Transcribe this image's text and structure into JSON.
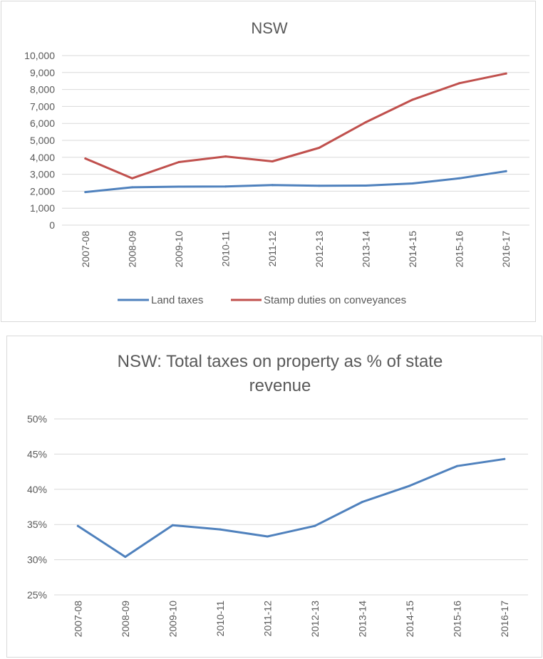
{
  "chart_data": [
    {
      "type": "line",
      "title": "NSW",
      "xlabel": "",
      "ylabel": "",
      "ylim": [
        0,
        10000
      ],
      "ytick_labels": [
        "0",
        "1,000",
        "2,000",
        "3,000",
        "4,000",
        "5,000",
        "6,000",
        "7,000",
        "8,000",
        "9,000",
        "10,000"
      ],
      "categories": [
        "2007-08",
        "2008-09",
        "2009-10",
        "2010-11",
        "2011-12",
        "2012-13",
        "2013-14",
        "2014-15",
        "2015-16",
        "2016-17"
      ],
      "grid": true,
      "legend": "bottom",
      "series": [
        {
          "name": "Land taxes",
          "color": "#4f81bd",
          "values": [
            1950,
            2230,
            2270,
            2280,
            2360,
            2320,
            2330,
            2460,
            2760,
            3180
          ]
        },
        {
          "name": "Stamp duties on conveyances",
          "color": "#c0504d",
          "values": [
            3930,
            2760,
            3720,
            4050,
            3760,
            4560,
            6070,
            7400,
            8370,
            8940
          ]
        }
      ]
    },
    {
      "type": "line",
      "title": "NSW: Total taxes on property as % of state revenue",
      "title_lines": [
        "NSW: Total taxes on property as % of state",
        "revenue"
      ],
      "xlabel": "",
      "ylabel": "",
      "ylim": [
        25,
        50
      ],
      "ytick_labels": [
        "25%",
        "30%",
        "35%",
        "40%",
        "45%",
        "50%"
      ],
      "categories": [
        "2007-08",
        "2008-09",
        "2009-10",
        "2010-11",
        "2011-12",
        "2012-13",
        "2013-14",
        "2014-15",
        "2015-16",
        "2016-17"
      ],
      "grid": true,
      "legend": "none",
      "series": [
        {
          "name": "Total taxes on property as % of state revenue",
          "color": "#4f81bd",
          "values": [
            34.8,
            30.4,
            34.9,
            34.3,
            33.3,
            34.8,
            38.2,
            40.5,
            43.3,
            44.3
          ]
        }
      ]
    }
  ]
}
